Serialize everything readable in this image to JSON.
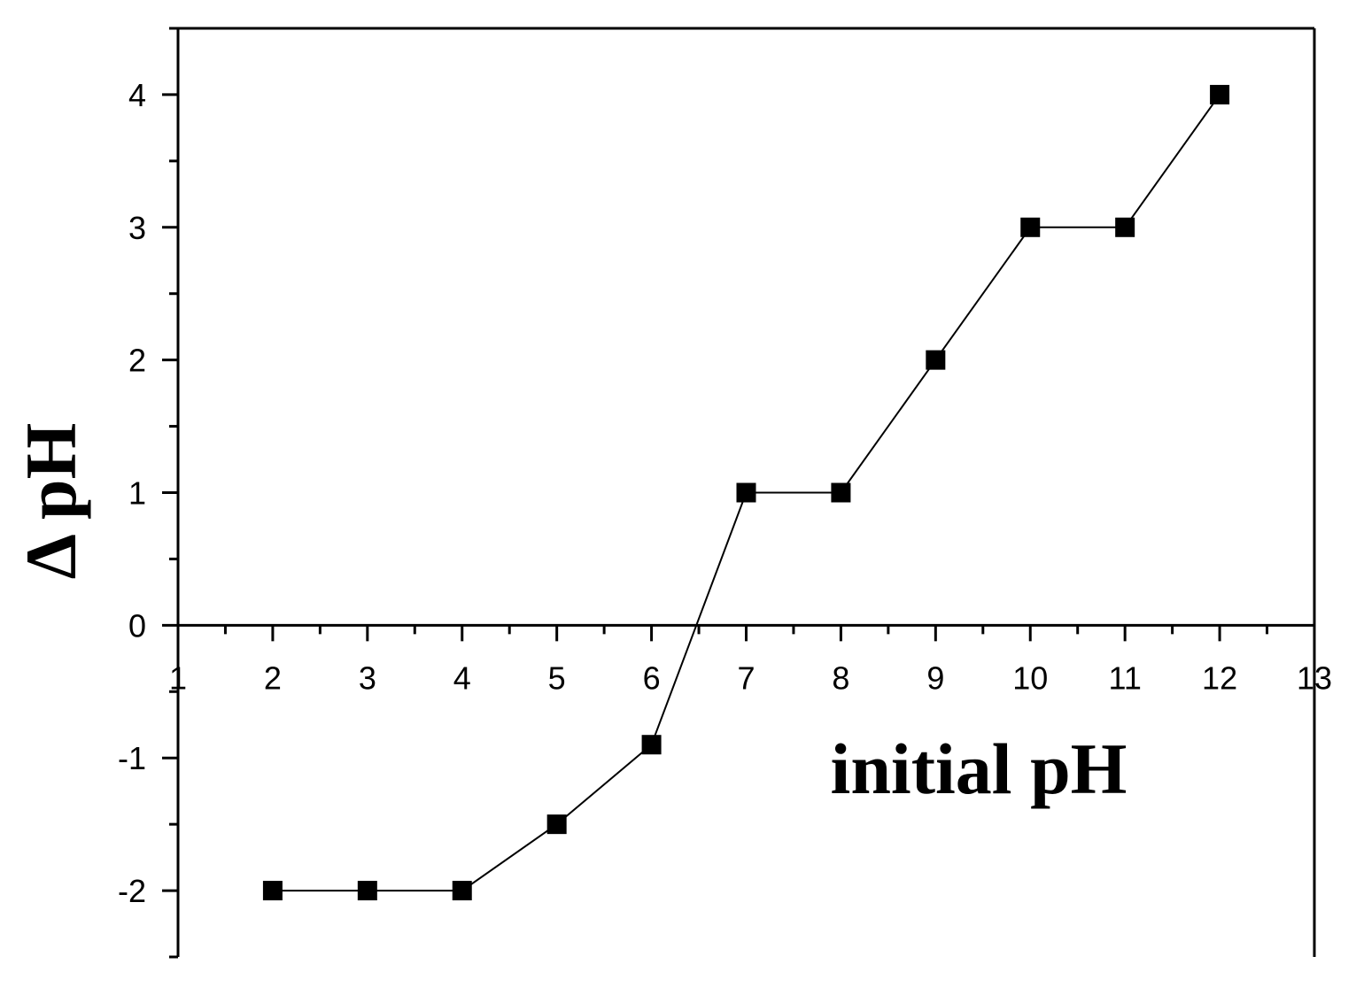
{
  "chart_data": {
    "type": "line",
    "xlabel": "initial pH",
    "ylabel": "Δ pH",
    "xlim": [
      1,
      13
    ],
    "ylim": [
      -2.5,
      4.5
    ],
    "x_ticks": [
      1,
      2,
      3,
      4,
      5,
      6,
      7,
      8,
      9,
      10,
      11,
      12,
      13
    ],
    "y_ticks": [
      -2,
      -1,
      0,
      1,
      2,
      3,
      4
    ],
    "grid": false,
    "legend": "none",
    "marker": "square",
    "color": "#000000",
    "series": [
      {
        "x": [
          2,
          3,
          4,
          5,
          6,
          7,
          8,
          9,
          10,
          11,
          12
        ],
        "y": [
          -2,
          -2,
          -2,
          -1.5,
          -0.9,
          1,
          1,
          2,
          3,
          3,
          4
        ]
      }
    ]
  }
}
